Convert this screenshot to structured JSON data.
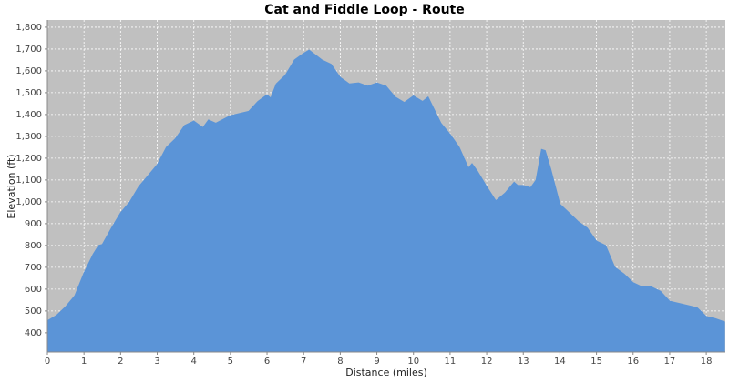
{
  "chart_data": {
    "type": "area",
    "title": "Cat and Fiddle Loop - Route",
    "xlabel": "Distance (miles)",
    "ylabel": "Elevation (ft)",
    "x": [
      0,
      0.25,
      0.5,
      0.75,
      1.0,
      1.25,
      1.4,
      1.5,
      1.75,
      2.0,
      2.25,
      2.5,
      2.75,
      3.0,
      3.25,
      3.5,
      3.75,
      4.0,
      4.25,
      4.4,
      4.6,
      5.0,
      5.5,
      5.75,
      6.0,
      6.1,
      6.25,
      6.5,
      6.75,
      7.0,
      7.15,
      7.5,
      7.75,
      8.0,
      8.25,
      8.5,
      8.75,
      9.0,
      9.25,
      9.5,
      9.75,
      10.0,
      10.25,
      10.4,
      10.75,
      11.0,
      11.25,
      11.5,
      11.6,
      11.75,
      12.0,
      12.25,
      12.5,
      12.75,
      12.85,
      13.0,
      13.2,
      13.35,
      13.5,
      13.6,
      13.75,
      14.0,
      14.25,
      14.5,
      14.75,
      15.0,
      15.25,
      15.5,
      15.75,
      16.0,
      16.25,
      16.5,
      16.75,
      17.0,
      17.25,
      17.5,
      17.75,
      18.0,
      18.25,
      18.5
    ],
    "values": [
      455,
      480,
      520,
      570,
      675,
      760,
      800,
      805,
      880,
      950,
      1000,
      1070,
      1120,
      1170,
      1250,
      1290,
      1350,
      1370,
      1340,
      1375,
      1360,
      1395,
      1415,
      1460,
      1490,
      1475,
      1540,
      1580,
      1650,
      1680,
      1695,
      1650,
      1630,
      1570,
      1540,
      1545,
      1530,
      1545,
      1530,
      1480,
      1455,
      1485,
      1460,
      1480,
      1360,
      1310,
      1250,
      1155,
      1175,
      1140,
      1070,
      1005,
      1040,
      1090,
      1075,
      1075,
      1065,
      1100,
      1240,
      1235,
      1150,
      990,
      950,
      910,
      880,
      820,
      800,
      700,
      670,
      630,
      610,
      610,
      590,
      545,
      535,
      525,
      515,
      475,
      465,
      450
    ],
    "color": "#5b94d7",
    "plot_background": "#c0c0c0",
    "grid": true,
    "xlim": [
      0,
      18.52
    ],
    "ylim": [
      312,
      1833
    ],
    "xticks": [
      0,
      1,
      2,
      3,
      4,
      5,
      6,
      7,
      8,
      9,
      10,
      11,
      12,
      13,
      14,
      15,
      16,
      17,
      18
    ],
    "yticks": [
      400,
      500,
      600,
      700,
      800,
      900,
      {
        "value": 1000,
        "label": "1,000"
      },
      {
        "value": 1100,
        "label": "1,100"
      },
      {
        "value": 1200,
        "label": "1,200"
      },
      {
        "value": 1300,
        "label": "1,300"
      },
      {
        "value": 1400,
        "label": "1,400"
      },
      {
        "value": 1500,
        "label": "1,500"
      },
      {
        "value": 1600,
        "label": "1,600"
      },
      {
        "value": 1700,
        "label": "1,700"
      },
      {
        "value": 1800,
        "label": "1,800"
      }
    ]
  }
}
